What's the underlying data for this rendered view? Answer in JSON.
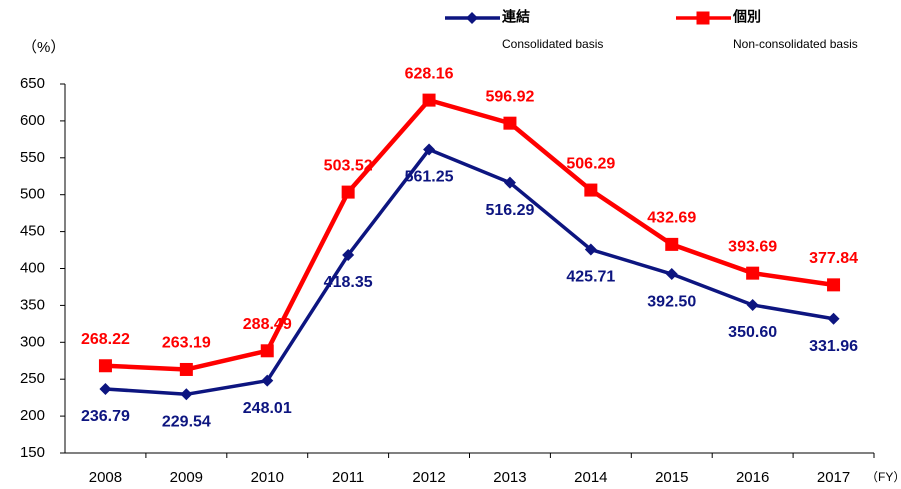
{
  "chart_data": {
    "type": "line",
    "y_label": "（%）",
    "x_label": "（FY）",
    "categories": [
      "2008",
      "2009",
      "2010",
      "2011",
      "2012",
      "2013",
      "2014",
      "2015",
      "2016",
      "2017"
    ],
    "series": [
      {
        "name": "連結",
        "legend_sublabel": "Consolidated basis",
        "color": "#0d1580",
        "marker": "diamond",
        "values": [
          236.79,
          229.54,
          248.01,
          418.35,
          561.25,
          516.29,
          425.71,
          392.5,
          350.6,
          331.96
        ],
        "value_labels": [
          "236.79",
          "229.54",
          "248.01",
          "418.35",
          "561.25",
          "516.29",
          "425.71",
          "392.50",
          "350.60",
          "331.96"
        ]
      },
      {
        "name": "個別",
        "legend_sublabel": "Non-consolidated basis",
        "color": "#ff0000",
        "marker": "square",
        "values": [
          268.22,
          263.19,
          288.49,
          503.52,
          628.16,
          596.92,
          506.29,
          432.69,
          393.69,
          377.84
        ],
        "value_labels": [
          "268.22",
          "263.19",
          "288.49",
          "503.52",
          "628.16",
          "596.92",
          "506.29",
          "432.69",
          "393.69",
          "377.84"
        ]
      }
    ],
    "ylim": [
      150,
      650
    ],
    "yticks": [
      150,
      200,
      250,
      300,
      350,
      400,
      450,
      500,
      550,
      600,
      650
    ]
  }
}
